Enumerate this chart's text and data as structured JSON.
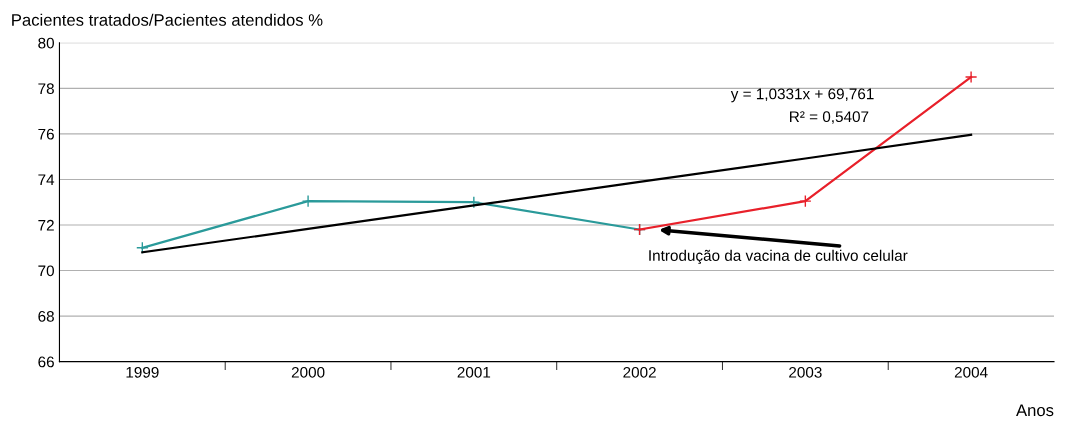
{
  "chart_data": {
    "type": "line",
    "ylabel": "Pacientes tratados/Pacientes atendidos %",
    "xlabel": "Anos",
    "categories": [
      "1999",
      "2000",
      "2001",
      "2002",
      "2003",
      "2004"
    ],
    "series": [
      {
        "color": "#2a9a9a",
        "values": [
          71.0,
          73.05,
          73.0,
          71.8,
          null,
          null
        ]
      },
      {
        "color": "#e8202a",
        "values": [
          null,
          null,
          null,
          71.8,
          73.05,
          78.5
        ]
      },
      {
        "color": "#000000",
        "marker": "none",
        "values": [
          70.8,
          71.83,
          72.86,
          73.89,
          74.92,
          75.96
        ]
      }
    ],
    "annotations": [
      "y = 1,0331x + 69,761",
      "R² = 0,5407",
      {
        "text": "Introdução da vacina de cultivo celular",
        "x": "2002",
        "y": 71.8
      }
    ],
    "ylim": [
      66,
      80
    ],
    "yticks": [
      66,
      68,
      70,
      72,
      74,
      76,
      78,
      80
    ],
    "grid": "y",
    "legend": false,
    "marker": "cross",
    "line_style": "solid"
  }
}
